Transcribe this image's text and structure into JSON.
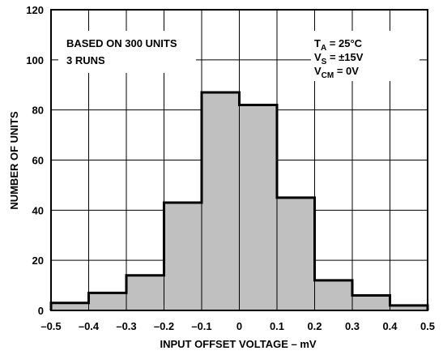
{
  "chart_data": {
    "type": "bar",
    "bin_edges": [
      -0.5,
      -0.4,
      -0.3,
      -0.2,
      -0.1,
      0,
      0.1,
      0.2,
      0.3,
      0.4,
      0.5
    ],
    "values": [
      3,
      7,
      14,
      43,
      87,
      82,
      45,
      12,
      6,
      2
    ],
    "xlabel": "INPUT OFFSET VOLTAGE – mV",
    "ylabel": "NUMBER OF UNITS",
    "xlim": [
      -0.5,
      0.5
    ],
    "ylim": [
      0,
      120
    ],
    "x_ticks": [
      -0.5,
      -0.4,
      -0.3,
      -0.2,
      -0.1,
      0,
      0.1,
      0.2,
      0.3,
      0.4,
      0.5
    ],
    "x_tick_labels": [
      "–0.5",
      "–0.4",
      "–0.3",
      "–0.2",
      "–0.1",
      "0",
      "0.1",
      "0.2",
      "0.3",
      "0.4",
      "0.5"
    ],
    "y_ticks": [
      0,
      20,
      40,
      60,
      80,
      100,
      120
    ],
    "y_tick_labels": [
      "0",
      "20",
      "40",
      "60",
      "80",
      "100",
      "120"
    ],
    "grid": true,
    "bar_color": "#c0c0c0",
    "annotation_left": [
      "BASED ON 300 UNITS",
      "3 RUNS"
    ],
    "annotation_right": {
      "ta": {
        "main": "T",
        "sub": "A",
        "rest": " = 25°C"
      },
      "vs": {
        "main": "V",
        "sub": "S",
        "rest": " = ±15V"
      },
      "vcm": {
        "main": "V",
        "sub": "CM",
        "rest": " = 0V"
      }
    }
  }
}
